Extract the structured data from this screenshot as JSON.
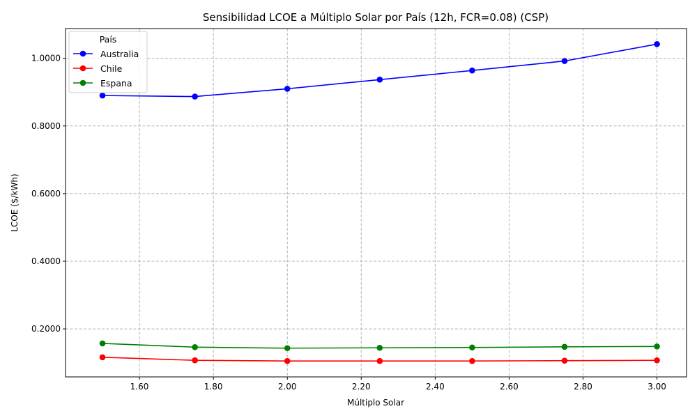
{
  "chart_data": {
    "type": "line",
    "title": "Sensibilidad LCOE a Múltiplo Solar por País (12h, FCR=0.08) (CSP)",
    "xlabel": "Múltiplo Solar",
    "ylabel": "LCOE ($/kWh)",
    "x": [
      1.5,
      1.75,
      2.0,
      2.25,
      2.5,
      2.75,
      3.0
    ],
    "xlim": [
      1.4,
      3.08
    ],
    "ylim": [
      0.058,
      1.088
    ],
    "xticks": [
      "1.60",
      "1.80",
      "2.00",
      "2.20",
      "2.40",
      "2.60",
      "2.80",
      "3.00"
    ],
    "yticks": [
      "0.2000",
      "0.4000",
      "0.6000",
      "0.8000",
      "1.0000"
    ],
    "grid": true,
    "legend": {
      "title": "País",
      "placement": "top-left"
    },
    "series": [
      {
        "name": "Australia",
        "color": "#0000ff",
        "values": [
          0.89,
          0.887,
          0.91,
          0.937,
          0.964,
          0.992,
          1.042
        ]
      },
      {
        "name": "Chile",
        "color": "#ff0000",
        "values": [
          0.116,
          0.107,
          0.105,
          0.105,
          0.105,
          0.106,
          0.107
        ]
      },
      {
        "name": "Espana",
        "color": "#008000",
        "values": [
          0.157,
          0.146,
          0.143,
          0.144,
          0.145,
          0.147,
          0.148
        ]
      }
    ]
  }
}
